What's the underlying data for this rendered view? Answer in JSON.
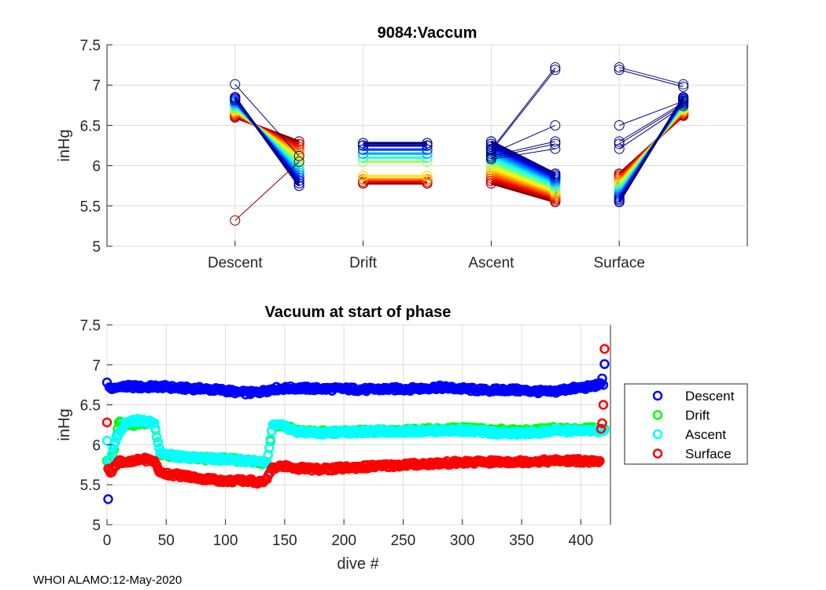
{
  "footer": "WHOI ALAMO:12-May-2020",
  "chart_data": [
    {
      "type": "line",
      "title": "9084:Vaccum",
      "xlabel": "",
      "ylabel": "inHg",
      "ylim": [
        5,
        7.5
      ],
      "yticks": [
        5,
        5.5,
        6,
        6.5,
        7,
        7.5
      ],
      "xlim": [
        0,
        5
      ],
      "categories": [
        "Descent",
        "Drift",
        "Ascent",
        "Surface"
      ],
      "category_positions": [
        1,
        2,
        3,
        4
      ],
      "legend": "none",
      "grid": true,
      "segments": [
        {
          "phase": "Descent",
          "x": [
            1,
            1.5
          ],
          "start_range": [
            6.6,
            6.85
          ],
          "end_range": [
            5.75,
            6.3
          ]
        },
        {
          "phase": "Drift",
          "x": [
            2,
            2.5
          ],
          "levels": [
            5.78,
            5.8,
            5.83,
            5.87,
            6.05,
            6.1,
            6.15,
            6.2,
            6.25,
            6.28
          ]
        },
        {
          "phase": "Ascent",
          "x": [
            3,
            3.5
          ],
          "start_range": [
            5.78,
            6.3
          ],
          "end_range": [
            5.55,
            5.9
          ]
        },
        {
          "phase": "Surface",
          "x": [
            4,
            4.5
          ],
          "start_range": [
            5.55,
            5.9
          ],
          "end_range": [
            6.62,
            6.85
          ]
        }
      ],
      "outliers": [
        {
          "x": [
            1,
            1.5
          ],
          "y": [
            5.32,
            6.05
          ]
        },
        {
          "x": [
            1,
            1.5
          ],
          "y": [
            7.01,
            6.12
          ]
        },
        {
          "x": [
            3,
            3.5
          ],
          "y": [
            6.2,
            7.22
          ]
        },
        {
          "x": [
            3,
            3.5
          ],
          "y": [
            6.18,
            7.19
          ]
        },
        {
          "x": [
            3,
            3.5
          ],
          "y": [
            6.15,
            6.5
          ]
        },
        {
          "x": [
            3,
            3.5
          ],
          "y": [
            6.12,
            6.3
          ]
        },
        {
          "x": [
            3,
            3.5
          ],
          "y": [
            6.1,
            6.27
          ]
        },
        {
          "x": [
            3,
            3.5
          ],
          "y": [
            6.08,
            6.21
          ]
        },
        {
          "x": [
            4,
            4.5
          ],
          "y": [
            7.22,
            7.01
          ]
        },
        {
          "x": [
            4,
            4.5
          ],
          "y": [
            7.19,
            6.98
          ]
        },
        {
          "x": [
            4,
            4.5
          ],
          "y": [
            6.5,
            6.8
          ]
        },
        {
          "x": [
            4,
            4.5
          ],
          "y": [
            6.3,
            6.78
          ]
        },
        {
          "x": [
            4,
            4.5
          ],
          "y": [
            6.27,
            6.76
          ]
        },
        {
          "x": [
            4,
            4.5
          ],
          "y": [
            6.21,
            6.74
          ]
        }
      ],
      "colormap": "jet (dive number: dark red = first dives, dark blue = latest dives)"
    },
    {
      "type": "scatter",
      "title": "Vacuum at start of phase",
      "xlabel": "dive #",
      "ylabel": "inHg",
      "xlim": [
        0,
        425
      ],
      "xticks": [
        0,
        50,
        100,
        150,
        200,
        250,
        300,
        350,
        400
      ],
      "ylim": [
        5,
        7.5
      ],
      "yticks": [
        5,
        5.5,
        6,
        6.5,
        7,
        7.5
      ],
      "grid": true,
      "legend_position": "outside-right",
      "series": [
        {
          "name": "Descent",
          "color": "#0000ff",
          "x": [
            0,
            1,
            2,
            5,
            10,
            20,
            30,
            45,
            60,
            80,
            100,
            110,
            120,
            130,
            140,
            160,
            180,
            200,
            220,
            240,
            260,
            280,
            300,
            320,
            340,
            360,
            375,
            390,
            405,
            415,
            418,
            420
          ],
          "y": [
            6.78,
            5.32,
            6.72,
            6.7,
            6.72,
            6.73,
            6.72,
            6.73,
            6.71,
            6.7,
            6.68,
            6.66,
            6.65,
            6.66,
            6.7,
            6.71,
            6.7,
            6.7,
            6.69,
            6.7,
            6.7,
            6.72,
            6.7,
            6.68,
            6.69,
            6.67,
            6.66,
            6.7,
            6.72,
            6.75,
            6.83,
            7.01
          ]
        },
        {
          "name": "Drift",
          "color": "#00ff00",
          "x": [
            0,
            2,
            5,
            10,
            15,
            20,
            30,
            40,
            45,
            60,
            80,
            100,
            120,
            130,
            135,
            140,
            150,
            160,
            180,
            200,
            250,
            300,
            350,
            380,
            400,
            420
          ],
          "y": [
            5.8,
            5.8,
            5.85,
            6.28,
            6.24,
            6.25,
            6.28,
            6.27,
            5.88,
            5.85,
            5.83,
            5.82,
            5.8,
            5.78,
            5.78,
            6.25,
            6.24,
            6.17,
            6.16,
            6.16,
            6.18,
            6.2,
            6.17,
            6.2,
            6.2,
            6.2
          ]
        },
        {
          "name": "Ascent",
          "color": "#00ffff",
          "x": [
            0,
            1,
            3,
            8,
            12,
            15,
            20,
            30,
            40,
            45,
            60,
            80,
            100,
            120,
            130,
            135,
            140,
            150,
            160,
            180,
            200,
            250,
            300,
            340,
            360,
            380,
            400,
            420
          ],
          "y": [
            6.05,
            5.8,
            5.82,
            6.1,
            6.18,
            6.28,
            6.3,
            6.3,
            6.27,
            5.9,
            5.85,
            5.83,
            5.82,
            5.8,
            5.78,
            5.76,
            6.25,
            6.23,
            6.16,
            6.15,
            6.16,
            6.17,
            6.18,
            6.14,
            6.15,
            6.18,
            6.17,
            6.18
          ]
        },
        {
          "name": "Surface",
          "color": "#ff0000",
          "x": [
            0,
            1,
            3,
            6,
            10,
            20,
            30,
            40,
            45,
            60,
            80,
            100,
            120,
            130,
            135,
            140,
            150,
            160,
            180,
            200,
            250,
            300,
            350,
            380,
            400,
            415,
            417,
            418,
            419,
            420
          ],
          "y": [
            6.28,
            5.7,
            5.65,
            5.73,
            5.8,
            5.78,
            5.82,
            5.8,
            5.65,
            5.62,
            5.58,
            5.55,
            5.55,
            5.53,
            5.57,
            5.72,
            5.73,
            5.71,
            5.69,
            5.71,
            5.75,
            5.78,
            5.79,
            5.8,
            5.8,
            5.78,
            6.2,
            6.27,
            6.5,
            7.2
          ]
        }
      ]
    }
  ]
}
